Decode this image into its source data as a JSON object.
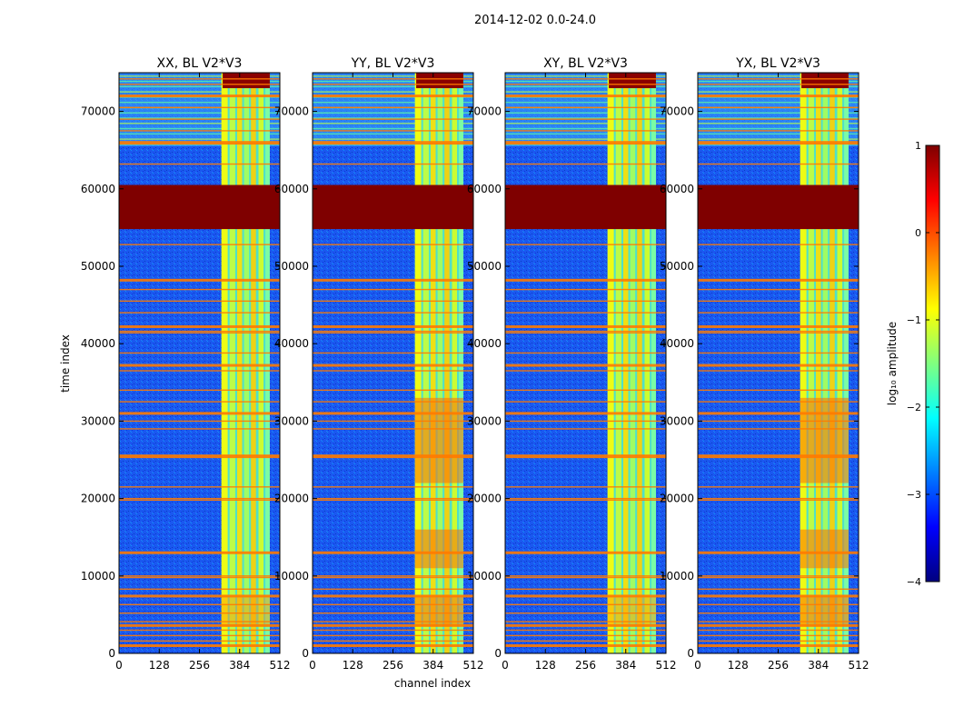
{
  "suptitle": "2014-12-02 0.0-24.0",
  "chart_data": {
    "type": "heatmap",
    "x_ticks": [
      0,
      128,
      256,
      384,
      512
    ],
    "y_ticks": [
      0,
      10000,
      20000,
      30000,
      40000,
      50000,
      60000,
      70000
    ],
    "xlim": [
      0,
      512
    ],
    "ylim": [
      0,
      75000
    ],
    "xlabel": "channel index",
    "ylabel": "time index",
    "panels": [
      {
        "title": "XX, BL V2*V3"
      },
      {
        "title": "YY, BL V2*V3"
      },
      {
        "title": "XY, BL V2*V3"
      },
      {
        "title": "YX, BL V2*V3"
      }
    ],
    "colorbar": {
      "label": "log₁₀ amplitude",
      "min": -4,
      "max": 1,
      "ticks": [
        1,
        0,
        -1,
        -2,
        -3,
        -4
      ],
      "tick_labels": [
        "1",
        "0",
        "−1",
        "−2",
        "−3",
        "−4"
      ],
      "colormap": "jet"
    },
    "features": {
      "saturated_time_block": [
        54800,
        60500
      ],
      "bright_channel_band": [
        326,
        480
      ],
      "rfi_time_rows": [
        1000,
        1600,
        2300,
        3000,
        3600,
        4100,
        5200,
        6300,
        7400,
        8300,
        9800,
        10000,
        13000,
        19800,
        20000,
        21500,
        25400,
        25600,
        29000,
        30000,
        31000,
        32500,
        34000,
        36500,
        37200,
        38800,
        41400,
        41600,
        42200,
        44000,
        45500,
        47000,
        48200,
        52800,
        63200,
        65800,
        66000,
        67500,
        69000,
        70500,
        72000,
        73500,
        74200
      ]
    }
  }
}
